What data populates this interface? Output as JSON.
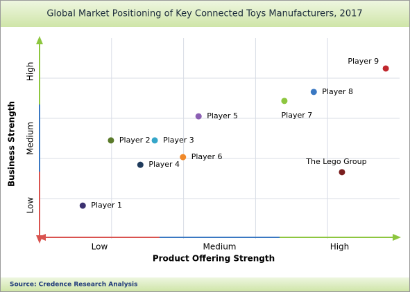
{
  "chart_data": {
    "type": "scatter",
    "title": "Global Market Positioning of Key Connected Toys Manufacturers, 2017",
    "x_label": "Product Offering Strength",
    "y_label": "Business Strength",
    "source": "Source: Credence Research Analysis",
    "xlim": [
      0,
      6
    ],
    "ylim": [
      0,
      6
    ],
    "xticks": [
      {
        "value": 1,
        "label": "Low"
      },
      {
        "value": 3,
        "label": "Medium"
      },
      {
        "value": 5,
        "label": "High"
      }
    ],
    "yticks": [
      {
        "value": 1,
        "label": "Low"
      },
      {
        "value": 3,
        "label": "Medium"
      },
      {
        "value": 5,
        "label": "High"
      }
    ],
    "grid": true,
    "series": [
      {
        "name": "Player 1",
        "color": "#3b3170",
        "x": [
          0.72
        ],
        "values": [
          0.99
        ]
      },
      {
        "name": "Player 2",
        "color": "#5a7a2a",
        "x": [
          1.19
        ],
        "values": [
          2.94
        ]
      },
      {
        "name": "Player 3",
        "color": "#35a6c9",
        "x": [
          1.92
        ],
        "values": [
          2.94
        ]
      },
      {
        "name": "Player 4",
        "color": "#1f3b5c",
        "x": [
          1.68
        ],
        "values": [
          2.21
        ]
      },
      {
        "name": "Player 5",
        "color": "#8b5fb3",
        "x": [
          2.65
        ],
        "values": [
          3.66
        ]
      },
      {
        "name": "Player 6",
        "color": "#f0892a",
        "x": [
          2.39
        ],
        "values": [
          2.44
        ]
      },
      {
        "name": "Player 7",
        "color": "#8dc63f",
        "x": [
          4.08
        ],
        "values": [
          4.12
        ]
      },
      {
        "name": "Player 8",
        "color": "#3a78c2",
        "x": [
          4.57
        ],
        "values": [
          4.39
        ]
      },
      {
        "name": "Player 9",
        "color": "#c0272d",
        "x": [
          5.77
        ],
        "values": [
          5.09
        ]
      },
      {
        "name": "The Lego Group",
        "color": "#7a1e1e",
        "x": [
          5.04
        ],
        "values": [
          1.99
        ]
      }
    ]
  }
}
